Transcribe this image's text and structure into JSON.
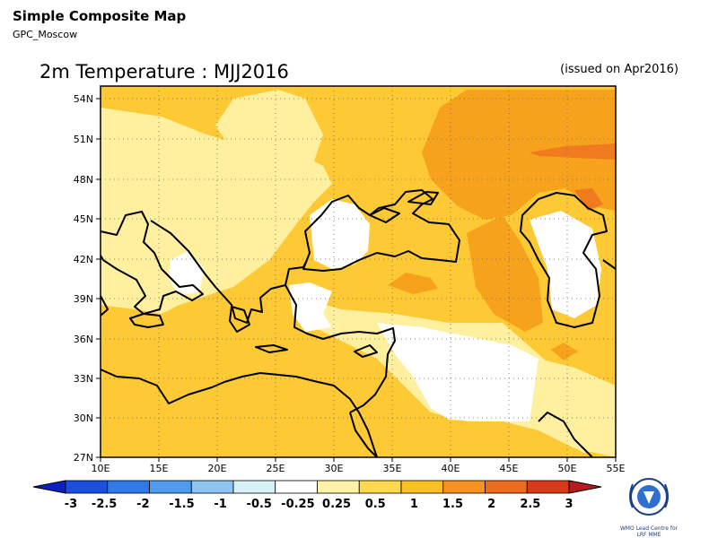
{
  "header": {
    "title": "Simple Composite Map",
    "subtitle": "GPC_Moscow",
    "map_title": "2m Temperature : MJJ2016",
    "issued": "(issued on Apr2016)"
  },
  "map": {
    "lat_labels": [
      "54N",
      "51N",
      "48N",
      "45N",
      "42N",
      "39N",
      "36N",
      "33N",
      "30N",
      "27N"
    ],
    "lon_labels": [
      "10E",
      "15E",
      "20E",
      "25E",
      "30E",
      "35E",
      "40E",
      "45E",
      "50E",
      "55E"
    ]
  },
  "colorbar": {
    "labels": [
      "-3",
      "-2.5",
      "-2",
      "-1.5",
      "-1",
      "-0.5",
      "-0.25",
      "0.25",
      "0.5",
      "1",
      "1.5",
      "2",
      "2.5",
      "3"
    ],
    "colors": [
      "#0a22c4",
      "#1b4fe0",
      "#2f7ae8",
      "#4f9bee",
      "#8ec4f2",
      "#d7f2f7",
      "#ffffff",
      "#fff3a8",
      "#ffd949",
      "#fcbf22",
      "#f7921f",
      "#f06a20",
      "#d93a1a",
      "#b71c1c"
    ]
  },
  "logo": {
    "name": "wmo-logo",
    "line1": "WMO Lead Centre for",
    "line2": "LRF MME"
  }
}
